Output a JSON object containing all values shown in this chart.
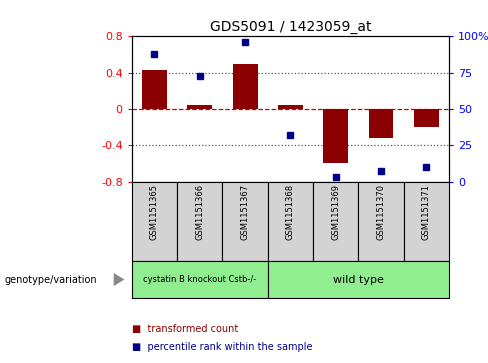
{
  "title": "GDS5091 / 1423059_at",
  "samples": [
    "GSM1151365",
    "GSM1151366",
    "GSM1151367",
    "GSM1151368",
    "GSM1151369",
    "GSM1151370",
    "GSM1151371"
  ],
  "bar_values": [
    0.43,
    0.04,
    0.5,
    0.04,
    -0.6,
    -0.32,
    -0.2
  ],
  "dot_values": [
    88,
    73,
    96,
    32,
    3,
    7,
    10
  ],
  "ylim_left": [
    -0.8,
    0.8
  ],
  "ylim_right": [
    0,
    100
  ],
  "group1_label": "cystatin B knockout Cstb-/-",
  "group2_label": "wild type",
  "group1_count": 3,
  "group2_count": 4,
  "group_color": "#90EE90",
  "bar_color": "#8B0000",
  "dot_color": "#00008B",
  "zero_line_color": "#CC0000",
  "dotted_line_color": "#555555",
  "background_color": "#ffffff",
  "sample_box_color": "#D3D3D3",
  "legend_items": [
    "transformed count",
    "percentile rank within the sample"
  ],
  "genotype_label": "genotype/variation",
  "yticks_left": [
    -0.8,
    -0.4,
    0.0,
    0.4,
    0.8
  ],
  "ytick_labels_left": [
    "-0.8",
    "-0.4",
    "0",
    "0.4",
    "0.8"
  ],
  "yticks_right": [
    0,
    25,
    50,
    75,
    100
  ],
  "ytick_labels_right": [
    "0",
    "25",
    "50",
    "75",
    "100%"
  ]
}
